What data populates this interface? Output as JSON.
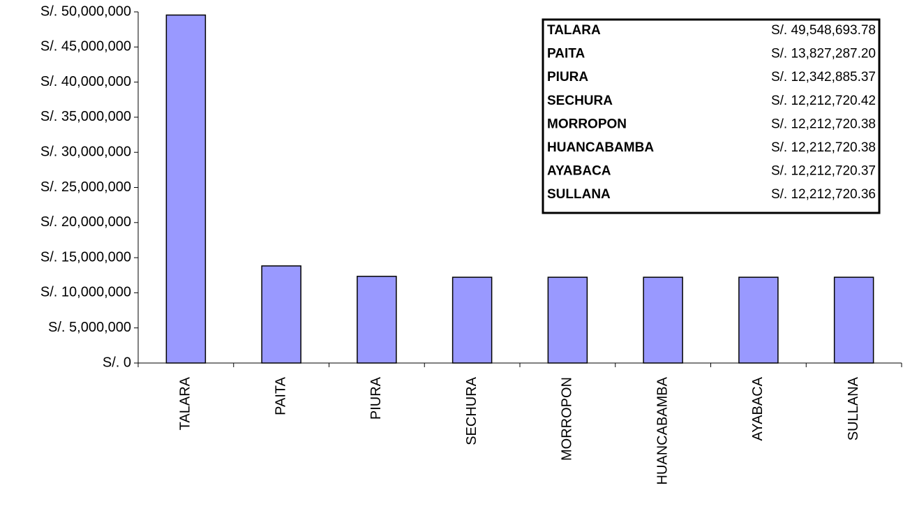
{
  "chart_data": {
    "type": "bar",
    "categories": [
      "TALARA",
      "PAITA",
      "PIURA",
      "SECHURA",
      "MORROPON",
      "HUANCABAMBA",
      "AYABACA",
      "SULLANA"
    ],
    "values": [
      49548693.78,
      13827287.2,
      12342885.37,
      12212720.42,
      12212720.38,
      12212720.38,
      12212720.37,
      12212720.36
    ],
    "value_labels": [
      "S/. 49,548,693.78",
      "S/. 13,827,287.20",
      "S/. 12,342,885.37",
      "S/. 12,212,720.42",
      "S/. 12,212,720.38",
      "S/. 12,212,720.38",
      "S/. 12,212,720.37",
      "S/. 12,212,720.36"
    ],
    "color": "#9999ff",
    "ylim": [
      0,
      50000000
    ],
    "yticks": [
      {
        "value": 0,
        "label": "S/. 0"
      },
      {
        "value": 5000000,
        "label": "S/. 5,000,000"
      },
      {
        "value": 10000000,
        "label": "S/. 10,000,000"
      },
      {
        "value": 15000000,
        "label": "S/. 15,000,000"
      },
      {
        "value": 20000000,
        "label": "S/. 20,000,000"
      },
      {
        "value": 25000000,
        "label": "S/. 25,000,000"
      },
      {
        "value": 30000000,
        "label": "S/. 30,000,000"
      },
      {
        "value": 35000000,
        "label": "S/. 35,000,000"
      },
      {
        "value": 40000000,
        "label": "S/. 40,000,000"
      },
      {
        "value": 45000000,
        "label": "S/. 45,000,000"
      },
      {
        "value": 50000000,
        "label": "S/. 50,000,000"
      }
    ],
    "grid": false
  }
}
